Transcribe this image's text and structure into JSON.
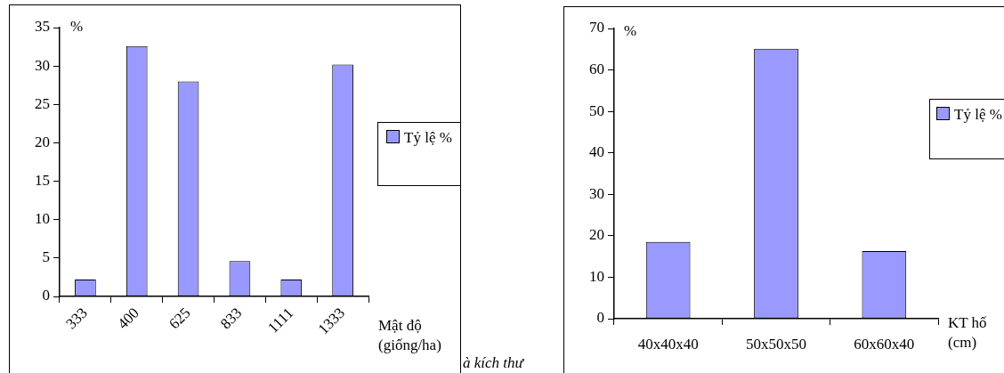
{
  "chart_data": [
    {
      "type": "bar",
      "categories": [
        "333",
        "400",
        "625",
        "833",
        "1111",
        "1333"
      ],
      "series": [
        {
          "name": "Tỷ lệ %",
          "color": "#9999ff",
          "values": [
            2.2,
            32.6,
            28.0,
            4.6,
            2.2,
            30.2
          ]
        }
      ],
      "ylim": [
        0,
        35
      ],
      "yticks": [
        0,
        5,
        10,
        15,
        20,
        25,
        30,
        35
      ],
      "ylabel": "%",
      "xlabel": "Mật độ (giống/ha)",
      "grid": false,
      "legend": "right",
      "annotations": [
        "à kích thư"
      ]
    },
    {
      "type": "bar",
      "categories": [
        "40x40x40",
        "50x50x50",
        "60x60x40"
      ],
      "series": [
        {
          "name": "Tỷ lệ %",
          "color": "#9999ff",
          "values": [
            18.5,
            65.1,
            16.3
          ]
        }
      ],
      "ylim": [
        0,
        70
      ],
      "yticks": [
        0,
        10,
        20,
        30,
        40,
        50,
        60,
        70
      ],
      "ylabel": "%",
      "xlabel": "KT hố (cm)",
      "grid": false,
      "legend": "right"
    }
  ]
}
